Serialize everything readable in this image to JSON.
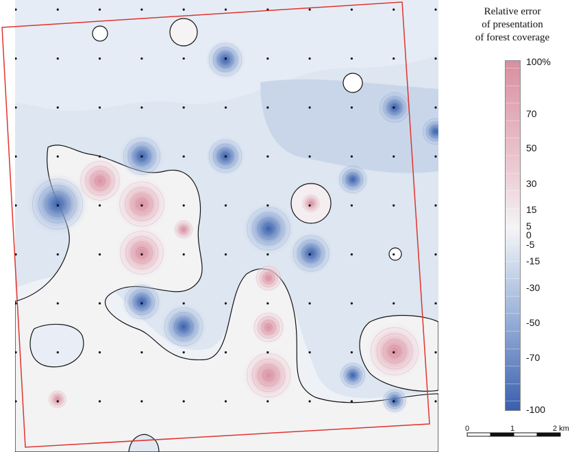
{
  "legend": {
    "title_lines": [
      "Relative error",
      "of presentation",
      "of forest coverage"
    ],
    "ticks": [
      "100%",
      "70",
      "50",
      "30",
      "15",
      "5",
      "0",
      "-5",
      "-15",
      "-30",
      "-50",
      "-70",
      "-100"
    ],
    "tick_values": [
      100,
      70,
      50,
      30,
      15,
      5,
      0,
      -5,
      -15,
      -30,
      -50,
      -70,
      -100
    ],
    "colors": {
      "max_positive": "#d98fa0",
      "zero": "#f4f4f4",
      "max_negative": "#3a5fae"
    }
  },
  "scale_bar": {
    "labels": [
      "0",
      "1",
      "2 km"
    ]
  },
  "map": {
    "frame_color": "#e0322c",
    "hotspots": [
      {
        "sign": "positive",
        "value": 55
      },
      {
        "sign": "positive",
        "value": 60
      },
      {
        "sign": "positive",
        "value": 55
      },
      {
        "sign": "positive",
        "value": 50
      },
      {
        "sign": "positive",
        "value": 50
      },
      {
        "sign": "positive",
        "value": 45
      },
      {
        "sign": "positive",
        "value": 40
      },
      {
        "sign": "positive",
        "value": 20
      },
      {
        "sign": "positive",
        "value": 15
      },
      {
        "sign": "positive",
        "value": 15
      },
      {
        "sign": "negative",
        "value": -90
      },
      {
        "sign": "negative",
        "value": -85
      },
      {
        "sign": "negative",
        "value": -80
      },
      {
        "sign": "negative",
        "value": -70
      },
      {
        "sign": "negative",
        "value": -70
      },
      {
        "sign": "negative",
        "value": -65
      },
      {
        "sign": "negative",
        "value": -60
      },
      {
        "sign": "negative",
        "value": -55
      },
      {
        "sign": "negative",
        "value": -50
      },
      {
        "sign": "negative",
        "value": -50
      },
      {
        "sign": "negative",
        "value": -45
      },
      {
        "sign": "negative",
        "value": -40
      },
      {
        "sign": "negative",
        "value": -40
      }
    ]
  }
}
